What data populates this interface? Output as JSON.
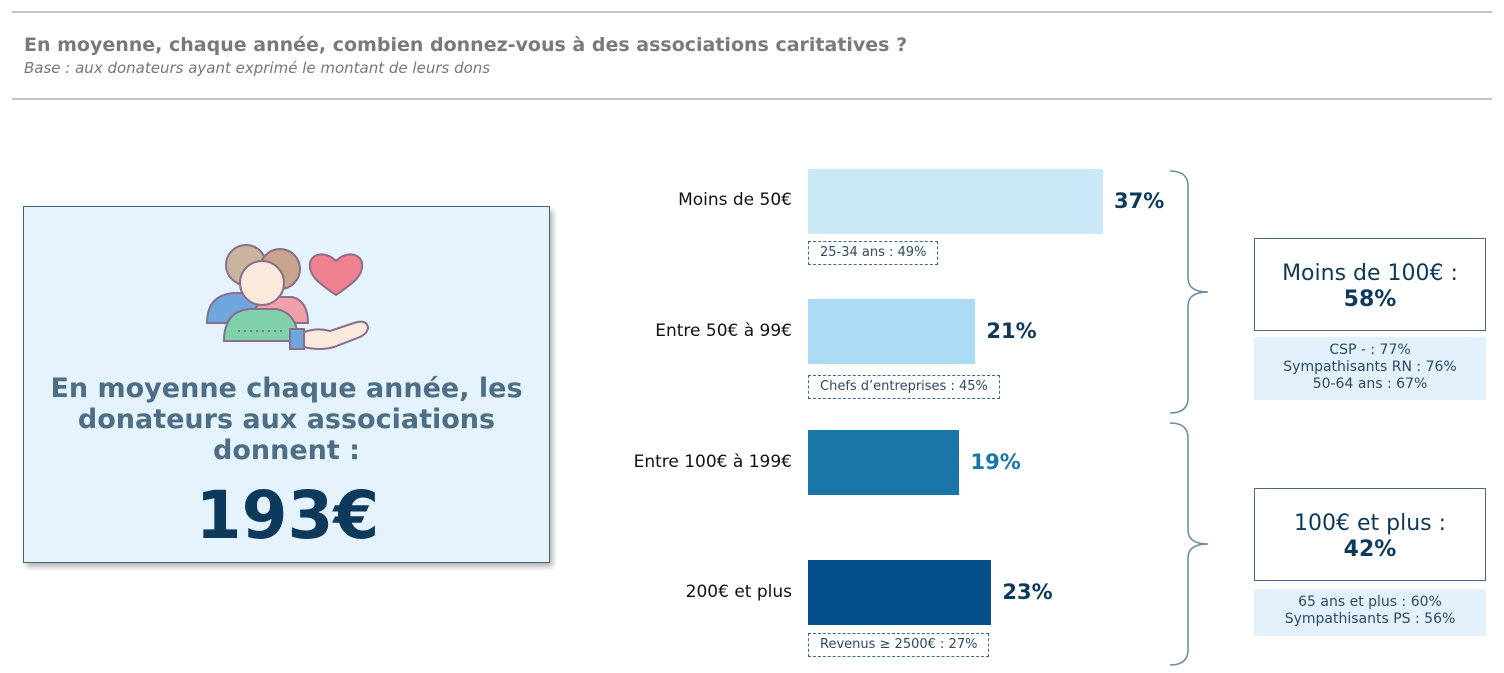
{
  "header": {
    "title": "En moyenne, chaque année, combien donnez-vous à des associations caritatives ?",
    "subtitle": "Base : aux donateurs ayant exprimé le montant de leurs dons"
  },
  "average_box": {
    "text_lines": [
      "En moyenne chaque année, les",
      "donateurs aux associations",
      "donnent :"
    ],
    "value": "193€",
    "icon": "donors-heart-hand-icon"
  },
  "chart_data": {
    "type": "bar",
    "orientation": "horizontal",
    "categories": [
      "Moins de 50€",
      "Entre 50€ à 99€",
      "Entre 100€ à 199€",
      "200€ et plus"
    ],
    "values": [
      37,
      21,
      19,
      23
    ],
    "value_labels": [
      "37%",
      "21%",
      "19%",
      "23%"
    ],
    "colors": [
      "#c9e8f8",
      "#acdcf5",
      "#1a76a8",
      "#03508a"
    ],
    "label_colors": [
      "#0d3a5a",
      "#0d3a5a",
      "#1a76a8",
      "#0d3a5a"
    ],
    "notes": [
      "25-34 ans : 49%",
      "Chefs d’entreprises : 45%",
      "",
      "Revenus ≥ 2500€ : 27%"
    ],
    "groups": [
      {
        "label": "Moins de 100€ :",
        "value": "58%",
        "categories": [
          0,
          1
        ],
        "details": [
          "CSP - : 77%",
          "Sympathisants RN : 76%",
          "50-64 ans : 67%"
        ]
      },
      {
        "label": "100€ et plus :",
        "value": "42%",
        "categories": [
          2,
          3
        ],
        "details": [
          "65 ans et plus : 60%",
          "Sympathisants PS : 56%"
        ]
      }
    ]
  }
}
